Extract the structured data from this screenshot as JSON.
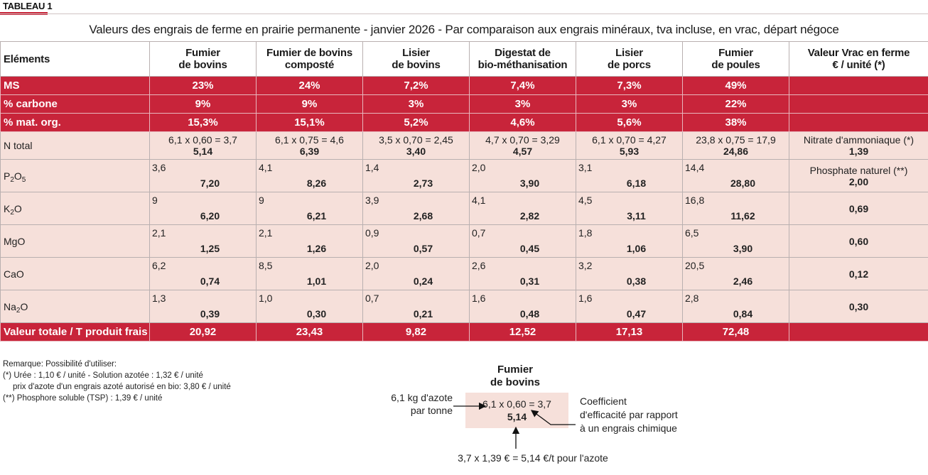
{
  "tag": "TABLEAU 1",
  "title": "Valeurs des engrais de ferme en prairie permanente - janvier 2026 - Par comparaison aux engrais minéraux, tva incluse, en vrac, départ négoce",
  "headers": [
    {
      "l1": "Eléments",
      "l2": ""
    },
    {
      "l1": "Fumier",
      "l2": "de bovins"
    },
    {
      "l1": "Fumier de bovins",
      "l2": "composté"
    },
    {
      "l1": "Lisier",
      "l2": "de bovins"
    },
    {
      "l1": "Digestat de",
      "l2": "bio-méthanisation"
    },
    {
      "l1": "Lisier",
      "l2": "de porcs"
    },
    {
      "l1": "Fumier",
      "l2": "de poules"
    },
    {
      "l1": "Valeur Vrac en ferme",
      "l2": "€ / unité (*)"
    }
  ],
  "ms": {
    "label": "MS",
    "values": [
      "23%",
      "24%",
      "7,2%",
      "7,4%",
      "7,3%",
      "49%"
    ]
  },
  "carbone": {
    "label": "% carbone",
    "values": [
      "9%",
      "9%",
      "3%",
      "3%",
      "3%",
      "22%"
    ]
  },
  "matorg": {
    "label": "% mat. org.",
    "values": [
      "15,3%",
      "15,1%",
      "5,2%",
      "4,6%",
      "5,6%",
      "38%"
    ]
  },
  "ntotal": {
    "label": "N total",
    "cells": [
      {
        "formula": "6,1 x 0,60 = 3,7",
        "value": "5,14"
      },
      {
        "formula": "6,1 x 0,75 = 4,6",
        "value": "6,39"
      },
      {
        "formula": "3,5 x 0,70 = 2,45",
        "value": "3,40"
      },
      {
        "formula": "4,7 x 0,70 = 3,29",
        "value": "4,57"
      },
      {
        "formula": "6,1 x 0,70 = 4,27",
        "value": "5,93"
      },
      {
        "formula": "23,8 x 0,75 = 17,9",
        "value": "24,86"
      }
    ],
    "ref_label": "Nitrate d'ammoniaque (*)",
    "ref_value": "1,39"
  },
  "p2o5": {
    "label_main": "P",
    "label_sub1": "2",
    "label_mid": "O",
    "label_sub2": "5",
    "cells": [
      {
        "qty": "3,6",
        "value": "7,20"
      },
      {
        "qty": "4,1",
        "value": "8,26"
      },
      {
        "qty": "1,4",
        "value": "2,73"
      },
      {
        "qty": "2,0",
        "value": "3,90"
      },
      {
        "qty": "3,1",
        "value": "6,18"
      },
      {
        "qty": "14,4",
        "value": "28,80"
      }
    ],
    "ref_label": "Phosphate naturel (**)",
    "ref_value": "2,00"
  },
  "k2o": {
    "label_main": "K",
    "label_sub": "2",
    "label_end": "O",
    "cells": [
      {
        "qty": "9",
        "value": "6,20"
      },
      {
        "qty": "9",
        "value": "6,21"
      },
      {
        "qty": "3,9",
        "value": "2,68"
      },
      {
        "qty": "4,1",
        "value": "2,82"
      },
      {
        "qty": "4,5",
        "value": "3,11"
      },
      {
        "qty": "16,8",
        "value": "11,62"
      }
    ],
    "ref_value": "0,69"
  },
  "mgo": {
    "label": "MgO",
    "cells": [
      {
        "qty": "2,1",
        "value": "1,25"
      },
      {
        "qty": "2,1",
        "value": "1,26"
      },
      {
        "qty": "0,9",
        "value": "0,57"
      },
      {
        "qty": "0,7",
        "value": "0,45"
      },
      {
        "qty": "1,8",
        "value": "1,06"
      },
      {
        "qty": "6,5",
        "value": "3,90"
      }
    ],
    "ref_value": "0,60"
  },
  "cao": {
    "label": "CaO",
    "cells": [
      {
        "qty": "6,2",
        "value": "0,74"
      },
      {
        "qty": "8,5",
        "value": "1,01"
      },
      {
        "qty": "2,0",
        "value": "0,24"
      },
      {
        "qty": "2,6",
        "value": "0,31"
      },
      {
        "qty": "3,2",
        "value": "0,38"
      },
      {
        "qty": "20,5",
        "value": "2,46"
      }
    ],
    "ref_value": "0,12"
  },
  "na2o": {
    "label_main": "Na",
    "label_sub": "2",
    "label_end": "O",
    "cells": [
      {
        "qty": "1,3",
        "value": "0,39"
      },
      {
        "qty": "1,0",
        "value": "0,30"
      },
      {
        "qty": "0,7",
        "value": "0,21"
      },
      {
        "qty": "1,6",
        "value": "0,48"
      },
      {
        "qty": "1,6",
        "value": "0,47"
      },
      {
        "qty": "2,8",
        "value": "0,84"
      }
    ],
    "ref_value": "0,30"
  },
  "total": {
    "label": "Valeur totale / T produit frais",
    "values": [
      "20,92",
      "23,43",
      "9,82",
      "12,52",
      "17,13",
      "72,48"
    ]
  },
  "remarks": {
    "r1": "Remarque: Possibilité d'utiliser:",
    "r2": "(*) Urée  : 1,10 € / unité  - Solution azotée  : 1,32 € / unité",
    "r3": "prix d'azote d'un engrais azoté autorisé en bio: 3,80 € / unité",
    "r4": "(**) Phosphore soluble (TSP)  : 1,39 € / unité"
  },
  "legend": {
    "head1": "Fumier",
    "head2": "de bovins",
    "formula": "6,1 x 0,60 = 3,7",
    "value": "5,14",
    "left1": "6,1 kg d'azote",
    "left2": "par tonne",
    "right1": "Coefficient",
    "right2": "d'efficacité par rapport",
    "right3": "à un engrais chimique",
    "bottom": "3,7 x 1,39 € = 5,14 €/t pour l'azote"
  },
  "colors": {
    "accent": "#c8243a",
    "row_bg": "#f6e0da"
  }
}
